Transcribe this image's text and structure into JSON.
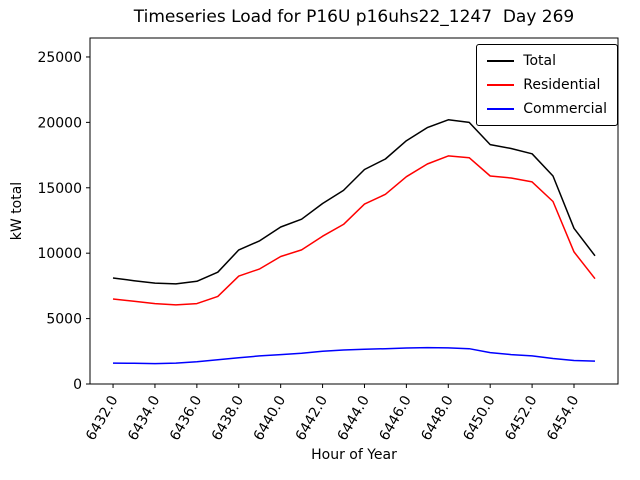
{
  "figure": {
    "background": "#ffffff"
  },
  "chart_data": {
    "type": "line",
    "title": "Timeseries Load for P16U p16uhs22_1247  Day 269",
    "xlabel": "Hour of Year",
    "ylabel": "kW total",
    "grid": false,
    "legend_position": "upper right",
    "xlim": [
      6430.9,
      6456.1
    ],
    "ylim": [
      0,
      26450
    ],
    "x_ticks": [
      6432,
      6434,
      6436,
      6438,
      6440,
      6442,
      6444,
      6446,
      6448,
      6450,
      6452,
      6454
    ],
    "y_ticks": [
      0,
      5000,
      10000,
      15000,
      20000,
      25000
    ],
    "x": [
      6432,
      6433,
      6434,
      6435,
      6436,
      6437,
      6438,
      6439,
      6440,
      6441,
      6442,
      6443,
      6444,
      6445,
      6446,
      6447,
      6448,
      6449,
      6450,
      6451,
      6452,
      6453,
      6454,
      6455
    ],
    "series": [
      {
        "name": "Total",
        "color": "#000000",
        "values": [
          8100,
          7900,
          7710,
          7650,
          7850,
          8550,
          10250,
          10950,
          12000,
          12600,
          13800,
          14800,
          16400,
          17200,
          18600,
          19600,
          20200,
          20000,
          18300,
          18000,
          17600,
          15900,
          11900,
          9800
        ]
      },
      {
        "name": "Residential",
        "color": "#ff0000",
        "values": [
          6500,
          6320,
          6150,
          6050,
          6150,
          6700,
          8250,
          8800,
          9750,
          10250,
          11300,
          12200,
          13750,
          14500,
          15850,
          16820,
          17440,
          17300,
          15900,
          15750,
          15450,
          13950,
          10100,
          8050
        ]
      },
      {
        "name": "Commercial",
        "color": "#0000ff",
        "values": [
          1600,
          1580,
          1560,
          1600,
          1700,
          1850,
          2000,
          2150,
          2250,
          2350,
          2500,
          2600,
          2650,
          2700,
          2750,
          2780,
          2760,
          2700,
          2400,
          2250,
          2150,
          1950,
          1800,
          1750
        ]
      }
    ]
  }
}
